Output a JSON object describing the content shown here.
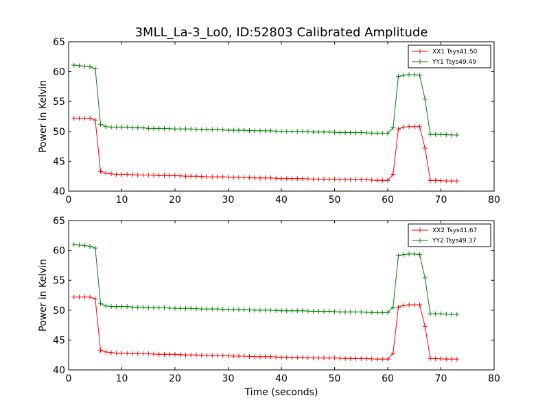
{
  "figure": {
    "title": "3MLL_La-3_Lo0, ID:52803 Calibrated Amplitude"
  },
  "chart_data": [
    {
      "type": "line",
      "xlabel": "",
      "ylabel": "Power in Kelvin",
      "xlim": [
        0,
        80
      ],
      "ylim": [
        40,
        65
      ],
      "xticks": [
        0,
        10,
        20,
        30,
        40,
        50,
        60,
        70,
        80
      ],
      "yticks": [
        40,
        45,
        50,
        55,
        60,
        65
      ],
      "grid": false,
      "legend_position": "top-right",
      "x": [
        1,
        2,
        3,
        4,
        5,
        6,
        7,
        8,
        9,
        10,
        11,
        12,
        13,
        14,
        15,
        16,
        17,
        18,
        19,
        20,
        21,
        22,
        23,
        24,
        25,
        26,
        27,
        28,
        29,
        30,
        31,
        32,
        33,
        34,
        35,
        36,
        37,
        38,
        39,
        40,
        41,
        42,
        43,
        44,
        45,
        46,
        47,
        48,
        49,
        50,
        51,
        52,
        53,
        54,
        55,
        56,
        57,
        58,
        59,
        60,
        61,
        62,
        63,
        64,
        65,
        66,
        67,
        68,
        69,
        70,
        71,
        72,
        73
      ],
      "series": [
        {
          "name": "XX1 Tsys41.50",
          "color": "#ff0000",
          "values": [
            52.2,
            52.2,
            52.2,
            52.2,
            51.9,
            43.3,
            43.0,
            42.9,
            42.8,
            42.8,
            42.8,
            42.75,
            42.7,
            42.7,
            42.7,
            42.65,
            42.6,
            42.6,
            42.6,
            42.6,
            42.55,
            42.5,
            42.5,
            42.5,
            42.45,
            42.4,
            42.4,
            42.4,
            42.4,
            42.35,
            42.3,
            42.3,
            42.3,
            42.25,
            42.2,
            42.2,
            42.2,
            42.2,
            42.15,
            42.1,
            42.1,
            42.1,
            42.1,
            42.1,
            42.05,
            42.0,
            42.0,
            42.0,
            42.0,
            42.0,
            41.95,
            41.9,
            41.9,
            41.9,
            41.9,
            41.9,
            41.85,
            41.8,
            41.8,
            41.8,
            42.8,
            50.4,
            50.7,
            50.8,
            50.8,
            50.8,
            47.2,
            41.8,
            41.8,
            41.75,
            41.7,
            41.7,
            41.7
          ]
        },
        {
          "name": "YY1 Tsys49.49",
          "color": "#008000",
          "values": [
            61.1,
            61.0,
            60.9,
            60.8,
            60.5,
            51.2,
            50.8,
            50.7,
            50.7,
            50.7,
            50.7,
            50.6,
            50.6,
            50.6,
            50.5,
            50.5,
            50.5,
            50.5,
            50.45,
            50.4,
            50.4,
            50.4,
            50.4,
            50.35,
            50.3,
            50.3,
            50.3,
            50.3,
            50.25,
            50.2,
            50.2,
            50.2,
            50.2,
            50.15,
            50.1,
            50.1,
            50.1,
            50.1,
            50.05,
            50.0,
            50.0,
            50.0,
            50.0,
            50.0,
            49.95,
            49.9,
            49.9,
            49.9,
            49.9,
            49.85,
            49.8,
            49.8,
            49.8,
            49.8,
            49.8,
            49.75,
            49.7,
            49.7,
            49.7,
            49.7,
            50.6,
            59.2,
            59.4,
            59.5,
            59.5,
            59.4,
            55.4,
            49.5,
            49.5,
            49.5,
            49.45,
            49.4,
            49.4
          ]
        }
      ]
    },
    {
      "type": "line",
      "xlabel": "Time (seconds)",
      "ylabel": "Power in Kelvin",
      "xlim": [
        0,
        80
      ],
      "ylim": [
        40,
        65
      ],
      "xticks": [
        0,
        10,
        20,
        30,
        40,
        50,
        60,
        70,
        80
      ],
      "yticks": [
        40,
        45,
        50,
        55,
        60,
        65
      ],
      "grid": false,
      "legend_position": "top-right",
      "x": [
        1,
        2,
        3,
        4,
        5,
        6,
        7,
        8,
        9,
        10,
        11,
        12,
        13,
        14,
        15,
        16,
        17,
        18,
        19,
        20,
        21,
        22,
        23,
        24,
        25,
        26,
        27,
        28,
        29,
        30,
        31,
        32,
        33,
        34,
        35,
        36,
        37,
        38,
        39,
        40,
        41,
        42,
        43,
        44,
        45,
        46,
        47,
        48,
        49,
        50,
        51,
        52,
        53,
        54,
        55,
        56,
        57,
        58,
        59,
        60,
        61,
        62,
        63,
        64,
        65,
        66,
        67,
        68,
        69,
        70,
        71,
        72,
        73
      ],
      "series": [
        {
          "name": "XX2 Tsys41.67",
          "color": "#ff0000",
          "values": [
            52.2,
            52.2,
            52.2,
            52.2,
            51.9,
            43.3,
            43.0,
            42.9,
            42.8,
            42.8,
            42.8,
            42.75,
            42.7,
            42.7,
            42.7,
            42.65,
            42.6,
            42.6,
            42.6,
            42.6,
            42.55,
            42.5,
            42.5,
            42.5,
            42.45,
            42.4,
            42.4,
            42.4,
            42.4,
            42.35,
            42.3,
            42.3,
            42.3,
            42.25,
            42.2,
            42.2,
            42.2,
            42.2,
            42.15,
            42.1,
            42.1,
            42.1,
            42.1,
            42.1,
            42.05,
            42.0,
            42.0,
            42.0,
            42.0,
            42.0,
            41.95,
            41.9,
            41.9,
            41.9,
            41.9,
            41.9,
            41.85,
            41.8,
            41.8,
            41.8,
            42.8,
            50.5,
            50.8,
            50.9,
            50.9,
            50.9,
            47.3,
            41.9,
            41.9,
            41.85,
            41.8,
            41.8,
            41.8
          ]
        },
        {
          "name": "YY2 Tsys49.37",
          "color": "#008000",
          "values": [
            61.0,
            60.9,
            60.8,
            60.7,
            60.4,
            51.1,
            50.7,
            50.6,
            50.6,
            50.6,
            50.6,
            50.5,
            50.5,
            50.5,
            50.4,
            50.4,
            50.4,
            50.4,
            50.35,
            50.3,
            50.3,
            50.3,
            50.3,
            50.25,
            50.2,
            50.2,
            50.2,
            50.2,
            50.15,
            50.1,
            50.1,
            50.1,
            50.1,
            50.05,
            50.0,
            50.0,
            50.0,
            50.0,
            49.95,
            49.9,
            49.9,
            49.9,
            49.9,
            49.9,
            49.85,
            49.8,
            49.8,
            49.8,
            49.8,
            49.75,
            49.7,
            49.7,
            49.7,
            49.7,
            49.7,
            49.65,
            49.6,
            49.6,
            49.6,
            49.6,
            50.5,
            59.1,
            59.3,
            59.4,
            59.4,
            59.3,
            55.4,
            49.4,
            49.4,
            49.4,
            49.35,
            49.3,
            49.3
          ]
        }
      ]
    }
  ]
}
